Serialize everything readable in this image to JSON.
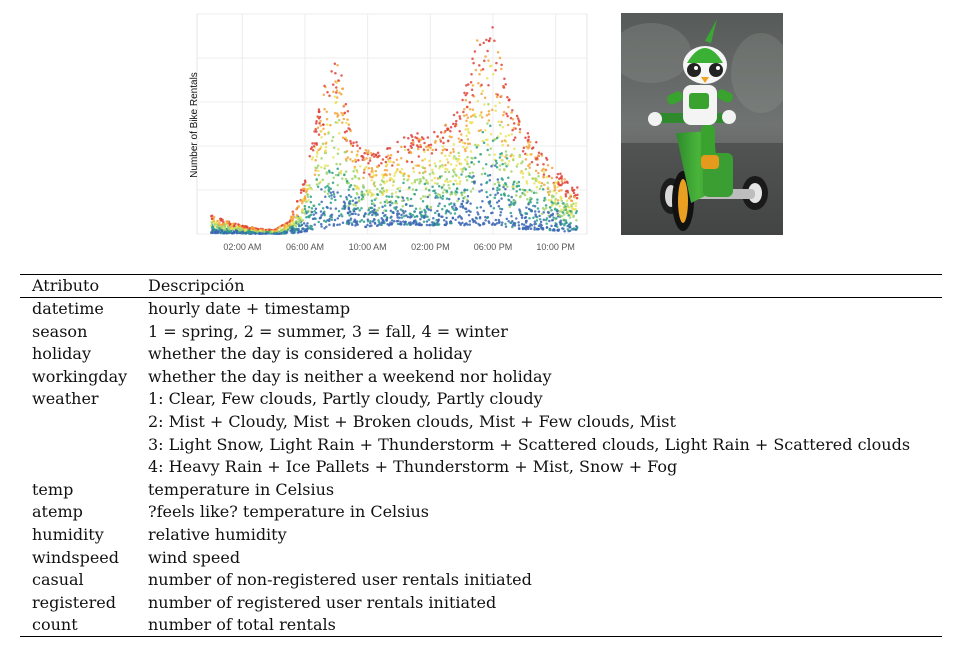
{
  "figure": {
    "chart": {
      "ylabel": "Number of Bike Rentals",
      "tick_labels": [
        "02:00 AM",
        "06:00 AM",
        "10:00 AM",
        "02:00 PM",
        "06:00 PM",
        "10:00 PM"
      ]
    },
    "photo": {
      "subject": "green robot riding a tricycle"
    }
  },
  "chart_data": {
    "type": "scatter",
    "title": "",
    "xlabel": "",
    "ylabel": "Number of Bike Rentals",
    "x_axis": "hour of day",
    "x_ticks": [
      "02:00 AM",
      "06:00 AM",
      "10:00 AM",
      "02:00 PM",
      "06:00 PM",
      "10:00 PM"
    ],
    "grid": true,
    "legend": "none",
    "color_scale": [
      "#3b66b4",
      "#2ca089",
      "#9fd36a",
      "#eae35a",
      "#f5a43c",
      "#e0413a"
    ],
    "envelope": [
      {
        "hour": 0.0,
        "low": 5,
        "high": 90
      },
      {
        "hour": 1.0,
        "low": 3,
        "high": 60
      },
      {
        "hour": 2.0,
        "low": 2,
        "high": 40
      },
      {
        "hour": 3.0,
        "low": 1,
        "high": 25
      },
      {
        "hour": 4.0,
        "low": 1,
        "high": 18
      },
      {
        "hour": 5.0,
        "low": 2,
        "high": 60
      },
      {
        "hour": 6.0,
        "low": 10,
        "high": 250
      },
      {
        "hour": 7.0,
        "low": 20,
        "high": 630
      },
      {
        "hour": 8.0,
        "low": 40,
        "high": 870
      },
      {
        "hour": 9.0,
        "low": 40,
        "high": 460
      },
      {
        "hour": 10.0,
        "low": 30,
        "high": 380
      },
      {
        "hour": 11.0,
        "low": 40,
        "high": 380
      },
      {
        "hour": 12.0,
        "low": 40,
        "high": 430
      },
      {
        "hour": 13.0,
        "low": 40,
        "high": 460
      },
      {
        "hour": 14.0,
        "low": 40,
        "high": 460
      },
      {
        "hour": 15.0,
        "low": 40,
        "high": 500
      },
      {
        "hour": 16.0,
        "low": 40,
        "high": 600
      },
      {
        "hour": 17.0,
        "low": 40,
        "high": 900
      },
      {
        "hour": 18.0,
        "low": 40,
        "high": 960
      },
      {
        "hour": 19.0,
        "low": 30,
        "high": 620
      },
      {
        "hour": 20.0,
        "low": 20,
        "high": 480
      },
      {
        "hour": 21.0,
        "low": 20,
        "high": 400
      },
      {
        "hour": 22.0,
        "low": 15,
        "high": 300
      },
      {
        "hour": 23.0,
        "low": 10,
        "high": 230
      }
    ]
  },
  "table": {
    "headers": {
      "attr": "Atributo",
      "desc": "Descripción"
    },
    "rows": [
      {
        "attr": "datetime",
        "desc": "hourly date + timestamp"
      },
      {
        "attr": "season",
        "desc": "1 = spring, 2 = summer, 3 = fall, 4 = winter"
      },
      {
        "attr": "holiday",
        "desc": "whether the day is considered a holiday"
      },
      {
        "attr": "workingday",
        "desc": "whether the day is neither a weekend nor holiday"
      },
      {
        "attr": "weather",
        "desc": "1: Clear, Few clouds, Partly cloudy, Partly cloudy"
      },
      {
        "attr": "",
        "desc": "2: Mist + Cloudy, Mist + Broken clouds, Mist + Few clouds, Mist"
      },
      {
        "attr": "",
        "desc": "3: Light Snow, Light Rain + Thunderstorm + Scattered clouds, Light Rain + Scattered clouds"
      },
      {
        "attr": "",
        "desc": "4: Heavy Rain + Ice Pallets + Thunderstorm + Mist, Snow + Fog"
      },
      {
        "attr": "temp",
        "desc": "temperature in Celsius"
      },
      {
        "attr": "atemp",
        "desc": "?feels like? temperature in Celsius"
      },
      {
        "attr": "humidity",
        "desc": "relative humidity"
      },
      {
        "attr": "windspeed",
        "desc": "wind speed"
      },
      {
        "attr": "casual",
        "desc": "number of non-registered user rentals initiated"
      },
      {
        "attr": "registered",
        "desc": "number of registered user rentals initiated"
      },
      {
        "attr": "count",
        "desc": "number of total rentals"
      }
    ]
  }
}
